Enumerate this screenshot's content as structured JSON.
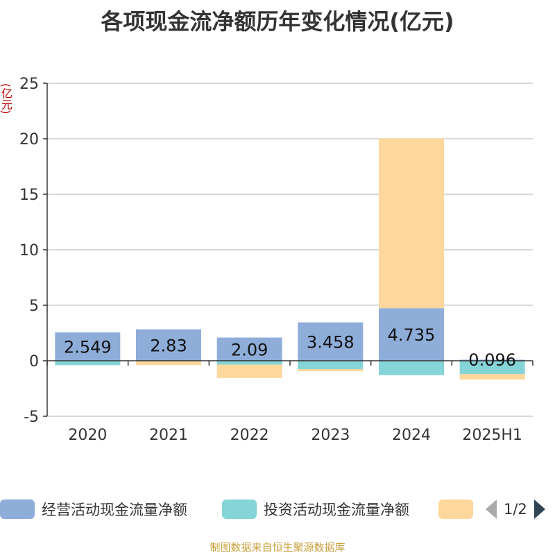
{
  "title": "各项现金流净额历年变化情况(亿元)",
  "unit_label": "(亿元)",
  "source": "制图数据来自恒生聚源数据库",
  "legend_page": "1/2",
  "colors": {
    "operating": "#8eadd9",
    "investing": "#85d4d8",
    "financing": "#fdd79c",
    "axis": "#333333",
    "grid": "#cccccc"
  },
  "chart_data": {
    "type": "bar",
    "stacked": true,
    "categories": [
      "2020",
      "2021",
      "2022",
      "2023",
      "2024",
      "2025H1"
    ],
    "ylim": [
      -5,
      25
    ],
    "yticks": [
      -5,
      0,
      5,
      10,
      15,
      20,
      25
    ],
    "grid": true,
    "legend_position": "bottom",
    "series": [
      {
        "name": "经营活动现金流量净额",
        "color_key": "operating",
        "values": [
          2.549,
          2.83,
          2.09,
          3.458,
          4.735,
          0.096
        ],
        "labels": [
          "2.549",
          "2.83",
          "2.09",
          "3.458",
          "4.735",
          "0.096"
        ]
      },
      {
        "name": "投资活动现金流量净额",
        "color_key": "investing",
        "values": [
          -0.4,
          0,
          -0.35,
          -0.75,
          -1.3,
          -1.2
        ]
      },
      {
        "name": "",
        "color_key": "financing",
        "values": [
          0,
          -0.4,
          -1.2,
          -0.2,
          15.3,
          -0.5
        ]
      }
    ]
  }
}
